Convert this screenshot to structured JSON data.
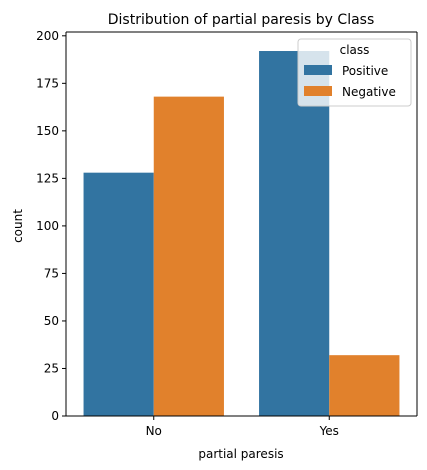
{
  "chart_data": {
    "type": "bar",
    "title": "Distribution of partial paresis by Class",
    "xlabel": "partial paresis",
    "ylabel": "count",
    "categories": [
      "No",
      "Yes"
    ],
    "series": [
      {
        "name": "Positive",
        "values": [
          128,
          192
        ],
        "color": "#3274a1"
      },
      {
        "name": "Negative",
        "values": [
          168,
          32
        ],
        "color": "#e1812c"
      }
    ],
    "ylim": [
      0,
      202
    ],
    "yticks": [
      0,
      25,
      50,
      75,
      100,
      125,
      150,
      175,
      200
    ],
    "legend": {
      "title": "class",
      "placement": "top-right"
    },
    "grid": false
  }
}
